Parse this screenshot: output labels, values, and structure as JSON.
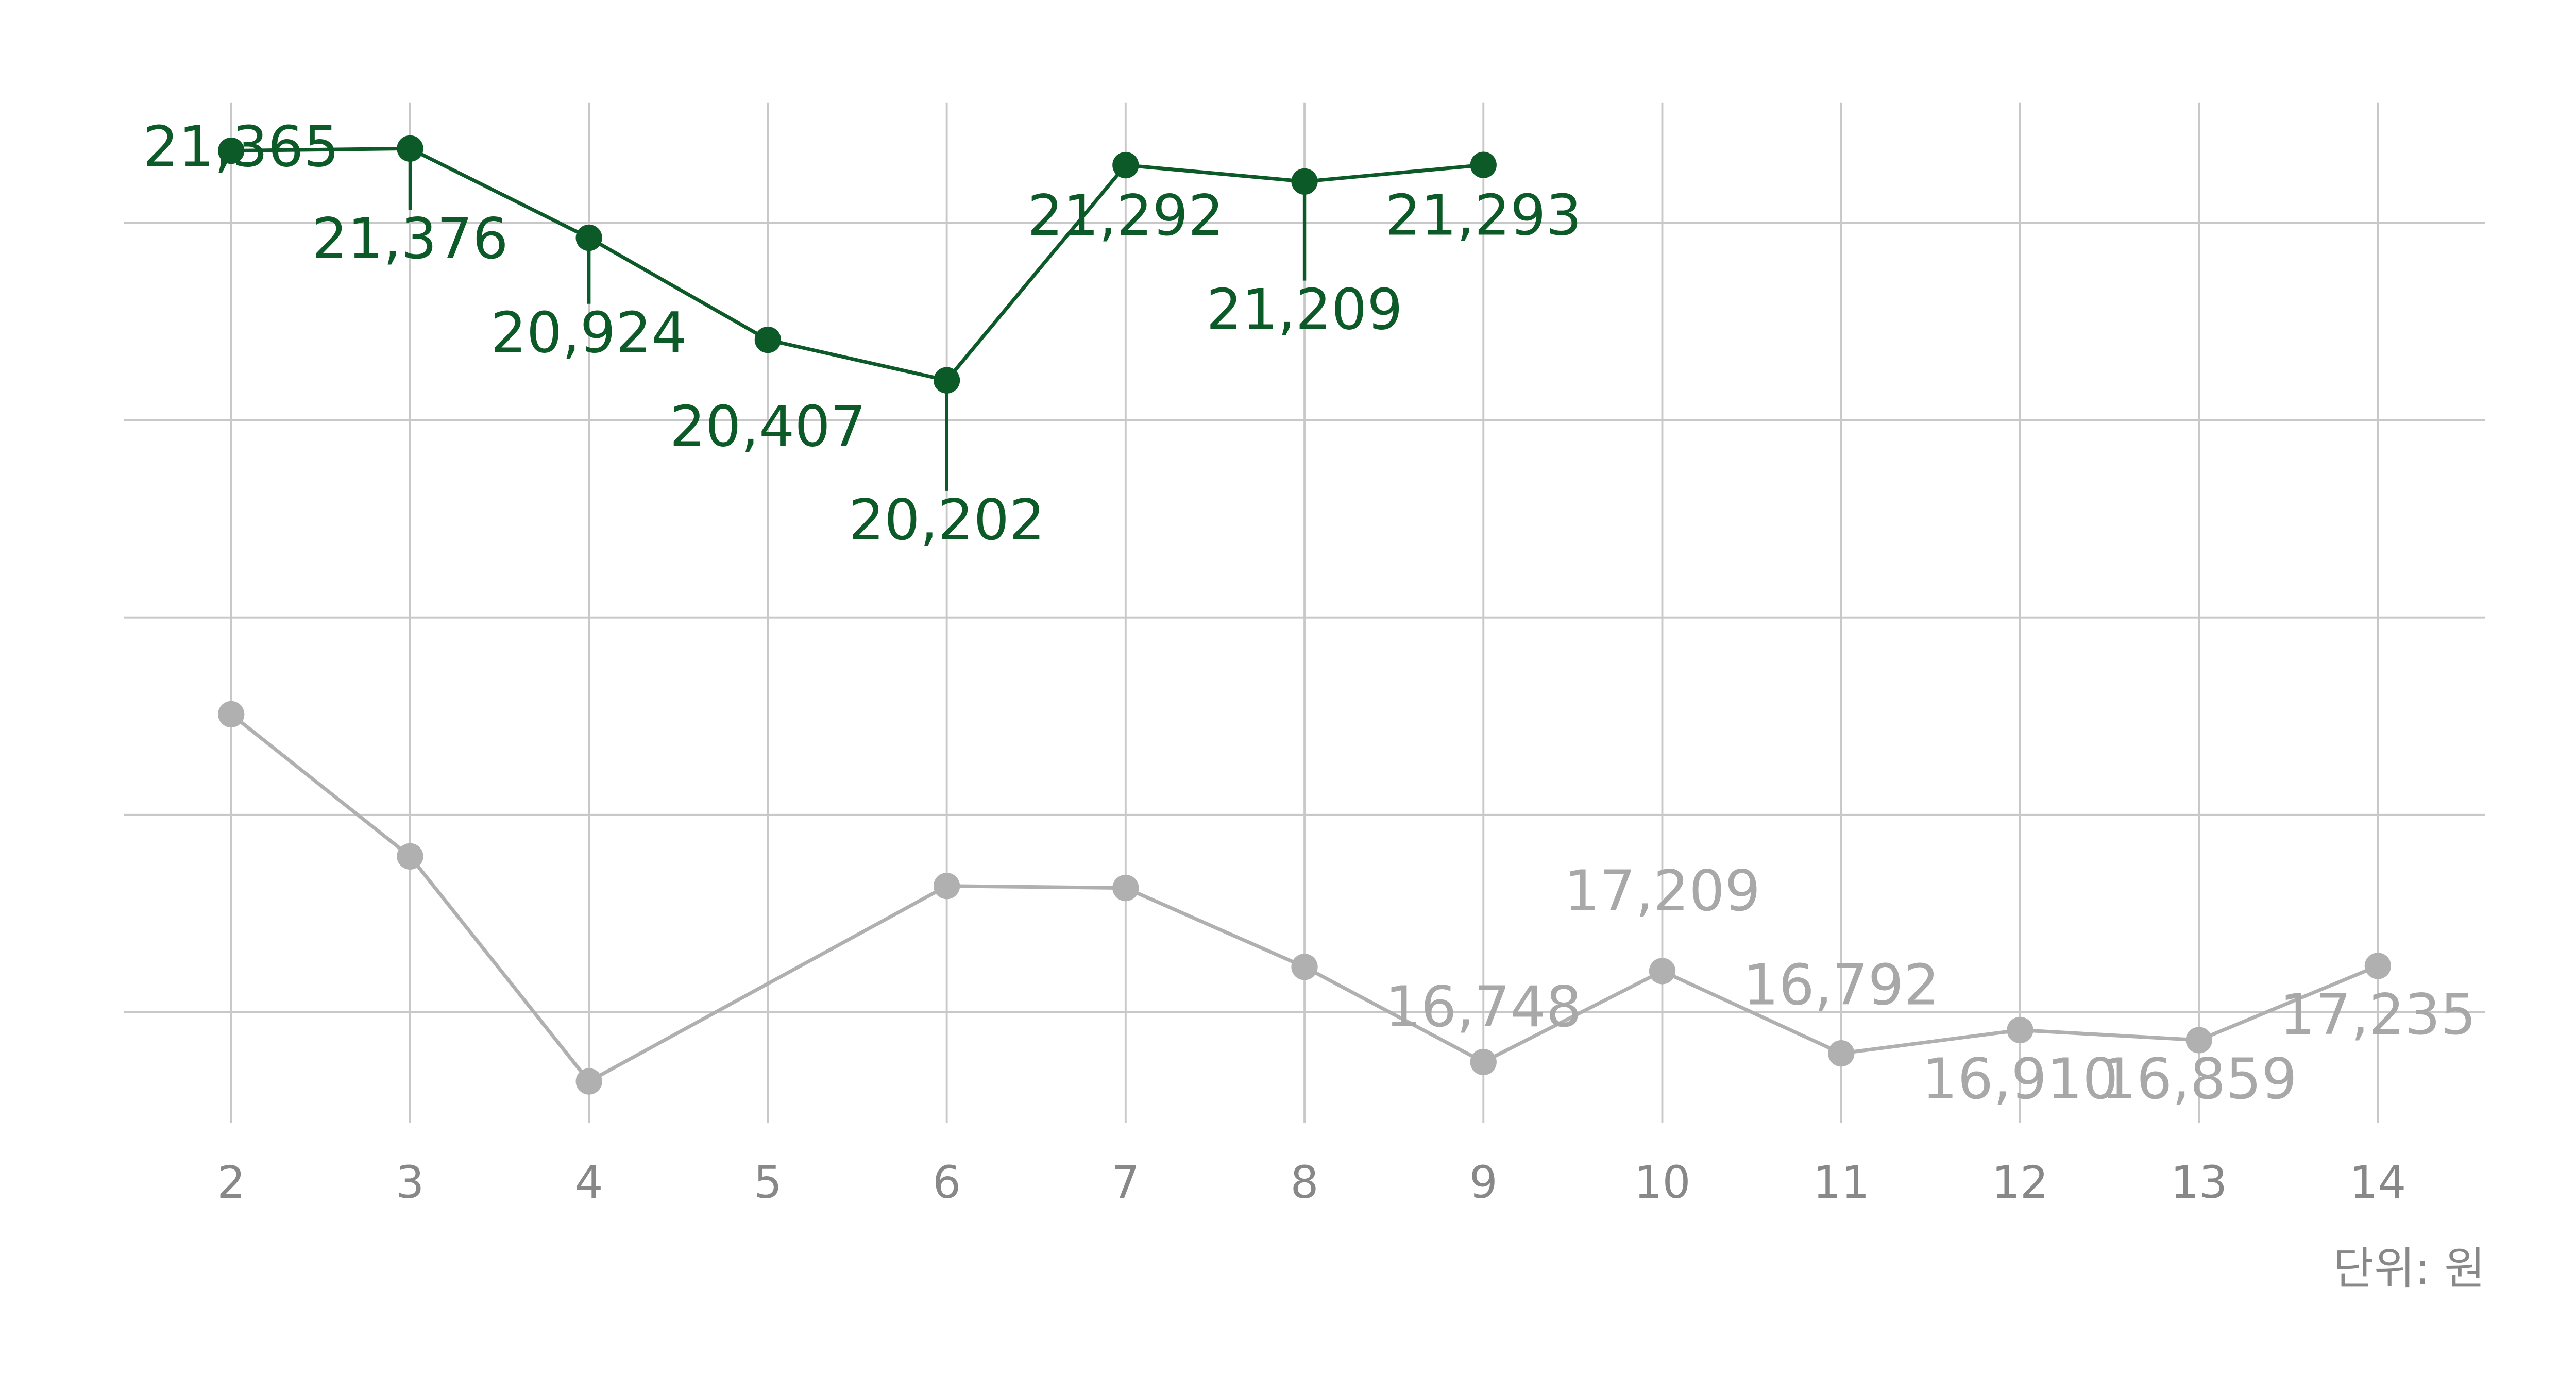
{
  "chart_data": {
    "type": "line",
    "x": [
      2,
      3,
      4,
      5,
      6,
      7,
      8,
      9,
      10,
      11,
      12,
      13,
      14
    ],
    "xlim": [
      1.4,
      14.6
    ],
    "xticks": [
      2,
      3,
      4,
      5,
      6,
      7,
      8,
      9,
      10,
      11,
      12,
      13,
      14
    ],
    "ylim": [
      16440,
      21610
    ],
    "yticks": [
      17000,
      18000,
      19000,
      20000,
      21000
    ],
    "grid": true,
    "connect_gaps": true,
    "unit_label": "단위: 원",
    "series": [
      {
        "color": "#0b5a27",
        "values": [
          21365,
          21376,
          20924,
          20407,
          20202,
          21292,
          21209,
          21293,
          null,
          null,
          null,
          null,
          null
        ],
        "value_labels": [
          "21,365",
          "21,376",
          "20,924",
          "20,407",
          "20,202",
          "21,292",
          "21,209",
          "21,293",
          null,
          null,
          null,
          null,
          null
        ]
      },
      {
        "color": "#b0b0b0",
        "values": [
          18510,
          17790,
          16650,
          null,
          17640,
          17630,
          17230,
          16748,
          17209,
          16792,
          16910,
          16859,
          17235
        ],
        "value_labels": [
          null,
          null,
          null,
          null,
          null,
          null,
          null,
          "16,748",
          "17,209",
          "16,792",
          "16,910",
          "16,859",
          "17,235"
        ]
      }
    ]
  }
}
